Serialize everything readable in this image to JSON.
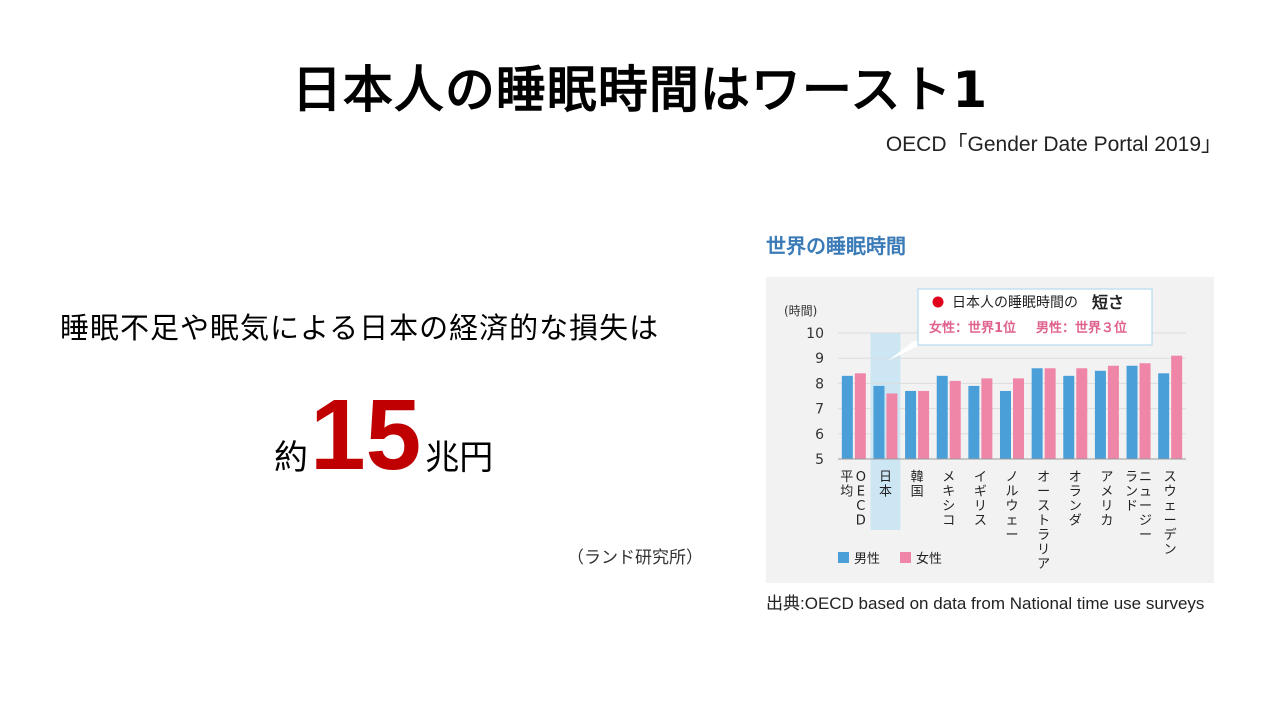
{
  "slide": {
    "title": "日本人の睡眠時間はワースト1",
    "source": "OECD「Gender Date Portal 2019」",
    "loss_text": "睡眠不足や眠気による日本の経済的な損失は",
    "amount_prefix": "約",
    "amount_number": "15",
    "amount_suffix": "兆円",
    "amount_source": "（ランド研究所）"
  },
  "chart_data": {
    "type": "bar",
    "title": "世界の睡眠時間",
    "ylabel": "(時間)",
    "ylim": [
      5,
      10
    ],
    "yticks": [
      5,
      6,
      7,
      8,
      9,
      10
    ],
    "categories": [
      "OECD平均",
      "日本",
      "韓国",
      "メキシコ",
      "イギリス",
      "ノルウェー",
      "オーストラリア",
      "オランダ",
      "アメリカ",
      "ニュージーランド",
      "スウェーデン"
    ],
    "category_lines": [
      [
        "OECD",
        "平均"
      ],
      [
        "日本"
      ],
      [
        "韓国"
      ],
      [
        "メキシコ"
      ],
      [
        "イギリス"
      ],
      [
        "ノルウェー"
      ],
      [
        "オーストラリア"
      ],
      [
        "オランダ"
      ],
      [
        "アメリカ"
      ],
      [
        "ニュージー",
        "ランド"
      ],
      [
        "スウェーデン"
      ]
    ],
    "series": [
      {
        "name": "男性",
        "color": "#4a9fd8",
        "values": [
          8.3,
          7.9,
          7.7,
          8.3,
          7.9,
          7.7,
          8.6,
          8.3,
          8.5,
          8.7,
          8.4
        ]
      },
      {
        "name": "女性",
        "color": "#ef86a8",
        "values": [
          8.4,
          7.6,
          7.7,
          8.1,
          8.2,
          8.2,
          8.6,
          8.6,
          8.7,
          8.8,
          9.1
        ]
      }
    ],
    "highlight_category": "日本",
    "annotation": {
      "line1": "日本人の睡眠時間の",
      "line1_bold": "短さ",
      "line2_women": "女性：世界1位",
      "line2_men": "男性：世界３位"
    },
    "caption": "出典:OECD based on data from National time use surveys",
    "colors": {
      "male": "#4a9fd8",
      "female": "#ef86a8",
      "title": "#3a7bb7",
      "annotation_text": "#e0628f",
      "highlight": "#cde6f4",
      "annotation_border": "#a9d3ee",
      "red_dot": "#e0001b"
    }
  }
}
